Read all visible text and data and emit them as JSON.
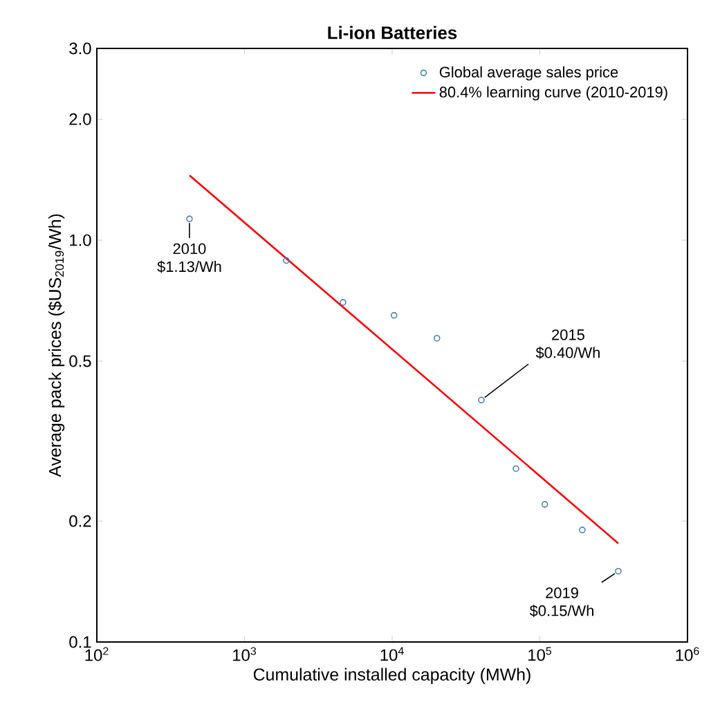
{
  "chart_data": {
    "type": "scatter",
    "title": "Li-ion Batteries",
    "xlabel": "Cumulative installed capacity (MWh)",
    "ylabel": "Average pack prices ($US$_{2019}$/Wh)",
    "log": "xy",
    "xlim": [
      100,
      1000000
    ],
    "ylim": [
      0.1,
      3.0
    ],
    "xticks": [
      {
        "value": 100,
        "label": "10$^{2}$"
      },
      {
        "value": 1000,
        "label": "10$^{3}$"
      },
      {
        "value": 10000,
        "label": "10$^{4}$"
      },
      {
        "value": 100000,
        "label": "10$^{5}$"
      },
      {
        "value": 1000000,
        "label": "10$^{6}$"
      }
    ],
    "yticks": [
      0.1,
      0.2,
      0.5,
      {
        "value": 1.0,
        "label": "1.0"
      },
      {
        "value": 2.0,
        "label": "2.0"
      },
      {
        "value": 3.0,
        "label": "3.0"
      }
    ],
    "grid": false,
    "legend": "top right",
    "series": [
      {
        "name": "Global average sales price",
        "marker": "circle",
        "color": "#4a7ebb",
        "x": [
          424,
          1920,
          4650,
          10300,
          20100,
          40200,
          68900,
          108000,
          194000,
          340000
        ],
        "values": [
          1.13,
          0.89,
          0.7,
          0.65,
          0.57,
          0.4,
          0.27,
          0.22,
          0.19,
          0.15
        ]
      },
      {
        "name": "80.4% learning curve (2010-2019)",
        "type": "line",
        "marker": "none",
        "color": "#ff0000",
        "x": [
          424,
          340000
        ],
        "values": [
          1.45,
          0.176
        ]
      }
    ],
    "annotations": [
      {
        "text": "2010 $1.13/Wh",
        "x": 424,
        "y": 1.13
      },
      {
        "text": "2015 $0.40/Wh",
        "x": 40200,
        "y": 0.4
      },
      {
        "text": "2019 $0.15/Wh",
        "x": 340000,
        "y": 0.15
      }
    ]
  }
}
